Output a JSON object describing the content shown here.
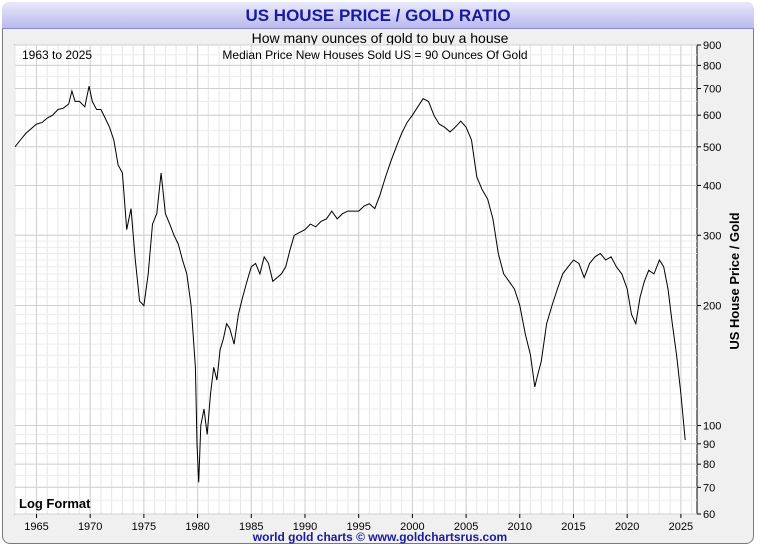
{
  "page": {
    "footer": "world gold charts © www.goldchartsrus.com"
  },
  "chart_data": {
    "type": "line",
    "title": "US HOUSE PRICE / GOLD RATIO",
    "subtitle": "How many ounces of gold to buy a house",
    "range_label": "1963 to 2025",
    "annotation": "Median Price New Houses Sold US = 90 Ounces Of Gold",
    "scale_label": "Log Format",
    "xlabel": "",
    "ylabel": "US House Price / Gold",
    "yscale": "log",
    "xlim": [
      1963.0,
      2026.5
    ],
    "ylim": [
      60,
      900
    ],
    "x_ticks": [
      1965,
      1970,
      1975,
      1980,
      1985,
      1990,
      1995,
      2000,
      2005,
      2010,
      2015,
      2020,
      2025
    ],
    "y_ticks": [
      60,
      70,
      80,
      90,
      100,
      200,
      300,
      400,
      500,
      600,
      700,
      800,
      900
    ],
    "grid": true,
    "line_color": "#000000",
    "series": [
      {
        "name": "US House Price / Gold",
        "x": [
          1963.0,
          1963.5,
          1964.0,
          1964.5,
          1965.0,
          1965.5,
          1966.0,
          1966.5,
          1967.0,
          1967.5,
          1968.0,
          1968.3,
          1968.6,
          1969.0,
          1969.5,
          1969.9,
          1970.2,
          1970.6,
          1971.0,
          1971.4,
          1971.8,
          1972.2,
          1972.6,
          1973.0,
          1973.4,
          1973.8,
          1974.2,
          1974.6,
          1975.0,
          1975.4,
          1975.8,
          1976.2,
          1976.6,
          1977.0,
          1977.4,
          1977.8,
          1978.2,
          1978.6,
          1979.0,
          1979.4,
          1979.8,
          1979.95,
          1980.1,
          1980.3,
          1980.6,
          1980.9,
          1981.2,
          1981.5,
          1981.8,
          1982.1,
          1982.4,
          1982.7,
          1983.0,
          1983.4,
          1983.8,
          1984.2,
          1984.6,
          1985.0,
          1985.4,
          1985.8,
          1986.2,
          1986.6,
          1987.0,
          1987.4,
          1987.8,
          1988.2,
          1988.6,
          1989.0,
          1989.5,
          1990.0,
          1990.5,
          1991.0,
          1991.5,
          1992.0,
          1992.5,
          1993.0,
          1993.5,
          1994.0,
          1994.5,
          1995.0,
          1995.5,
          1996.0,
          1996.5,
          1997.0,
          1997.5,
          1998.0,
          1998.5,
          1999.0,
          1999.5,
          2000.0,
          2000.5,
          2001.0,
          2001.5,
          2002.0,
          2002.5,
          2003.0,
          2003.5,
          2004.0,
          2004.5,
          2005.0,
          2005.5,
          2006.0,
          2006.5,
          2007.0,
          2007.5,
          2008.0,
          2008.5,
          2009.0,
          2009.5,
          2010.0,
          2010.5,
          2011.0,
          2011.4,
          2011.7,
          2012.0,
          2012.5,
          2013.0,
          2013.5,
          2014.0,
          2014.5,
          2015.0,
          2015.5,
          2016.0,
          2016.5,
          2017.0,
          2017.5,
          2018.0,
          2018.5,
          2019.0,
          2019.5,
          2020.0,
          2020.4,
          2020.8,
          2021.2,
          2021.6,
          2022.0,
          2022.5,
          2023.0,
          2023.4,
          2023.8,
          2024.2,
          2024.6,
          2025.0,
          2025.4
        ],
        "values": [
          500,
          520,
          540,
          555,
          570,
          575,
          590,
          600,
          620,
          625,
          640,
          690,
          650,
          650,
          630,
          710,
          650,
          620,
          620,
          590,
          560,
          520,
          450,
          430,
          310,
          350,
          260,
          205,
          200,
          240,
          320,
          340,
          430,
          340,
          320,
          300,
          285,
          260,
          240,
          200,
          140,
          90,
          72,
          100,
          110,
          95,
          120,
          140,
          130,
          155,
          165,
          180,
          175,
          160,
          190,
          210,
          230,
          250,
          255,
          240,
          265,
          255,
          230,
          235,
          240,
          250,
          275,
          300,
          305,
          310,
          320,
          315,
          325,
          330,
          345,
          330,
          340,
          345,
          345,
          345,
          355,
          360,
          350,
          380,
          420,
          460,
          500,
          540,
          575,
          600,
          630,
          660,
          650,
          600,
          570,
          560,
          545,
          560,
          580,
          560,
          520,
          420,
          390,
          370,
          330,
          270,
          240,
          230,
          220,
          200,
          170,
          150,
          125,
          135,
          145,
          180,
          200,
          220,
          240,
          250,
          260,
          255,
          235,
          255,
          265,
          270,
          260,
          265,
          250,
          240,
          220,
          190,
          180,
          210,
          230,
          245,
          240,
          260,
          250,
          220,
          180,
          150,
          120,
          92
        ]
      }
    ]
  }
}
